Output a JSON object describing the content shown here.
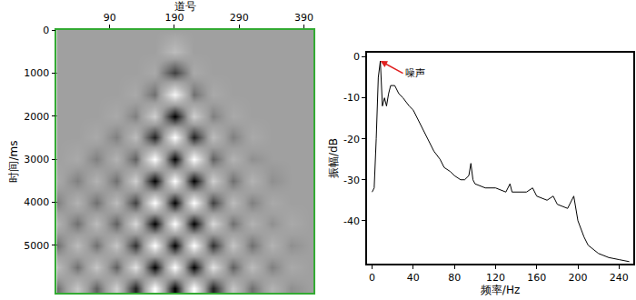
{
  "chart_data": [
    {
      "type": "heatmap",
      "xlabel": "道号",
      "ylabel": "时间/ms",
      "x": [
        10,
        40,
        70,
        100,
        130,
        160,
        190,
        220,
        250,
        280,
        310,
        340,
        370,
        400
      ],
      "y": [
        0,
        500,
        1000,
        1500,
        2000,
        2500,
        3000,
        3500,
        4000,
        4500,
        5000,
        5500,
        6000
      ],
      "z": [
        [
          0,
          0,
          0,
          0,
          0,
          0,
          0,
          0,
          0,
          0,
          0,
          0,
          0,
          0
        ],
        [
          0,
          0,
          0,
          0,
          0,
          0,
          0.3,
          0,
          0,
          0,
          0,
          0,
          0,
          0
        ],
        [
          0,
          0,
          0,
          0,
          0,
          0.1,
          -0.6,
          0.1,
          0,
          0,
          0,
          0,
          0,
          0
        ],
        [
          0,
          0,
          0,
          0,
          0.1,
          -0.3,
          0.9,
          -0.3,
          0.1,
          0,
          0,
          0,
          0,
          0
        ],
        [
          0,
          0,
          0,
          0.1,
          -0.2,
          0.5,
          -1,
          0.5,
          -0.2,
          0.1,
          0,
          0,
          0,
          0
        ],
        [
          0,
          0,
          0.1,
          -0.2,
          0.3,
          -0.8,
          1,
          -0.8,
          0.3,
          -0.2,
          0.1,
          0,
          0,
          0
        ],
        [
          0,
          0.1,
          -0.2,
          0.2,
          -0.4,
          1,
          -1,
          1,
          -0.4,
          0.2,
          -0.1,
          0,
          0,
          0
        ],
        [
          0.1,
          -0.2,
          0.2,
          -0.3,
          0.5,
          -1,
          1,
          -1,
          0.5,
          -0.3,
          0.2,
          -0.1,
          0,
          0
        ],
        [
          -0.2,
          0.2,
          -0.3,
          0.3,
          -0.6,
          1,
          -1,
          1,
          -0.6,
          0.3,
          -0.2,
          0.1,
          0,
          0
        ],
        [
          0.2,
          -0.3,
          0.3,
          -0.4,
          0.6,
          -1,
          1,
          -1,
          0.6,
          -0.3,
          0.2,
          -0.1,
          0.1,
          0
        ],
        [
          -0.3,
          0.3,
          -0.3,
          0.4,
          -0.7,
          1,
          -1,
          1,
          -0.7,
          0.4,
          -0.3,
          0.2,
          -0.1,
          0
        ],
        [
          0.3,
          -0.3,
          0.4,
          -0.4,
          0.7,
          -1,
          1,
          -1,
          0.7,
          -0.4,
          0.3,
          -0.2,
          0.1,
          0
        ],
        [
          -0.3,
          0.4,
          -0.4,
          0.5,
          -0.8,
          1,
          -1,
          1,
          -0.8,
          0.4,
          -0.3,
          0.2,
          -0.1,
          0
        ]
      ],
      "zlim": [
        -1,
        1
      ],
      "xlim": [
        8,
        405
      ],
      "xticks": [
        90,
        190,
        290,
        390
      ],
      "ylim": [
        6100,
        0
      ],
      "yticks": [
        0,
        1000,
        2000,
        3000,
        4000,
        5000
      ],
      "grid": "y"
    },
    {
      "type": "line",
      "xlabel": "频率/Hz",
      "ylabel": "振幅/dB",
      "x": [
        0,
        2,
        4,
        6,
        8,
        10,
        12,
        14,
        16,
        18,
        22,
        26,
        30,
        36,
        40,
        44,
        50,
        56,
        60,
        66,
        70,
        76,
        80,
        86,
        90,
        94,
        96,
        98,
        100,
        110,
        120,
        130,
        134,
        136,
        140,
        150,
        156,
        160,
        170,
        176,
        180,
        190,
        196,
        200,
        206,
        210,
        220,
        230,
        240,
        250
      ],
      "values": [
        -33,
        -32,
        -20,
        -5,
        -1,
        -12,
        -10,
        -12,
        -9,
        -7,
        -7,
        -9,
        -10,
        -12,
        -13,
        -15,
        -18,
        -21,
        -23,
        -25,
        -27,
        -28,
        -29,
        -30,
        -30,
        -29,
        -26,
        -30,
        -31,
        -32,
        -32,
        -33,
        -31,
        -33,
        -33,
        -33,
        -32,
        -34,
        -35,
        -34,
        -36,
        -37,
        -34,
        -40,
        -44,
        -46,
        -48,
        -49,
        -49.5,
        -50
      ],
      "color": "#000000",
      "xlim": [
        -5,
        254
      ],
      "xticks": [
        0,
        40,
        80,
        120,
        160,
        200,
        240
      ],
      "ylim": [
        -50.5,
        1
      ],
      "yticks": [
        0,
        -10,
        -20,
        -30,
        -40
      ],
      "grid": false,
      "annotations": [
        {
          "text": "噪声",
          "x": 8,
          "y": -1,
          "text_x": 30,
          "text_y": -4
        }
      ]
    }
  ]
}
